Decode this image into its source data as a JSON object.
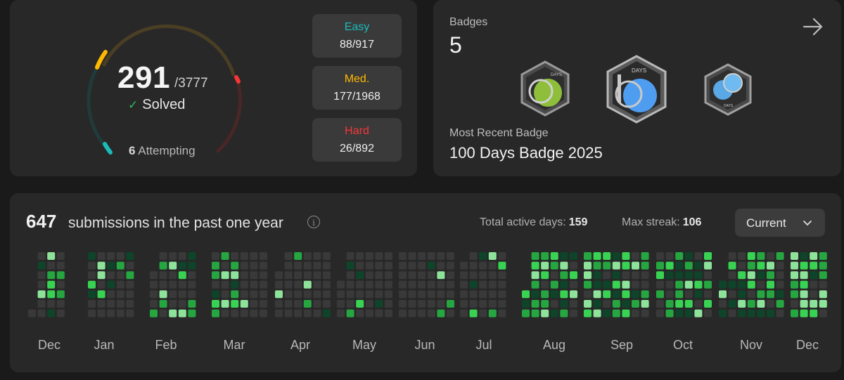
{
  "progress": {
    "solved": "291",
    "total": "/3777",
    "solved_label": "Solved",
    "attempting_count": "6",
    "attempting_label": "Attempting",
    "difficulties": [
      {
        "name": "Easy",
        "count": "88/917",
        "color": "#1cbaba"
      },
      {
        "name": "Med.",
        "count": "177/1968",
        "color": "#ffb800"
      },
      {
        "name": "Hard",
        "count": "26/892",
        "color": "#f63737"
      }
    ]
  },
  "badges": {
    "label": "Badges",
    "count": "5",
    "items": [
      {
        "icon": "50-days-badge-icon",
        "text": "DAYS"
      },
      {
        "icon": "100-days-badge-icon",
        "text": "DAYS"
      },
      {
        "icon": "annual-badge-icon",
        "text": "DAYS"
      }
    ],
    "recent_label": "Most Recent Badge",
    "recent_name": "100 Days Badge 2025"
  },
  "calendar": {
    "count": "647",
    "text": "submissions in the past one year",
    "active_days_label": "Total active days:",
    "active_days": "159",
    "max_streak_label": "Max streak:",
    "max_streak": "106",
    "selector": "Current",
    "months": [
      "Dec",
      "Jan",
      "Feb",
      "Mar",
      "Apr",
      "May",
      "Jun",
      "Jul",
      "Aug",
      "Sep",
      "Oct",
      "Nov",
      "Dec"
    ],
    "colors": {
      "empty": "#393939",
      "low": "#0e4429",
      "mid": "#26a641",
      "high": "#39d353",
      "top": "#8ee39b"
    }
  }
}
